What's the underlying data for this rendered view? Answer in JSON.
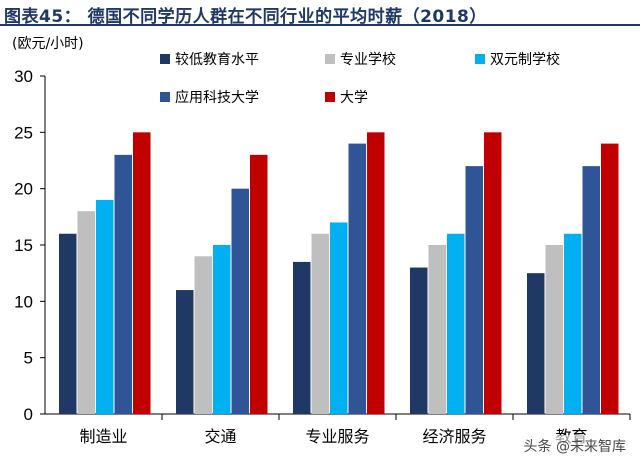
{
  "title": "图表45： 德国不同学历人群在不同行业的平均时薪（2018）",
  "watermark": "头条 @未来智库",
  "chart_data": {
    "type": "bar",
    "ylabel": "(欧元/小时)",
    "ylim": [
      0,
      30
    ],
    "yticks": [
      0,
      5,
      10,
      15,
      20,
      25,
      30
    ],
    "grid": false,
    "legend_position": "top",
    "categories": [
      "制造业",
      "交通",
      "专业服务",
      "经济服务",
      "教育"
    ],
    "series": [
      {
        "name": "较低教育水平",
        "color": "#1f3864",
        "values": [
          16,
          11,
          13.5,
          13,
          12.5
        ]
      },
      {
        "name": "专业学校",
        "color": "#bfbfbf",
        "values": [
          18,
          14,
          16,
          15,
          15
        ]
      },
      {
        "name": "双元制学校",
        "color": "#00b0f0",
        "values": [
          19,
          15,
          17,
          16,
          16
        ]
      },
      {
        "name": "应用科技大学",
        "color": "#2f5597",
        "values": [
          23,
          20,
          24,
          22,
          22
        ]
      },
      {
        "name": "大学",
        "color": "#c00000",
        "values": [
          25,
          23,
          25,
          25,
          24
        ]
      }
    ]
  }
}
